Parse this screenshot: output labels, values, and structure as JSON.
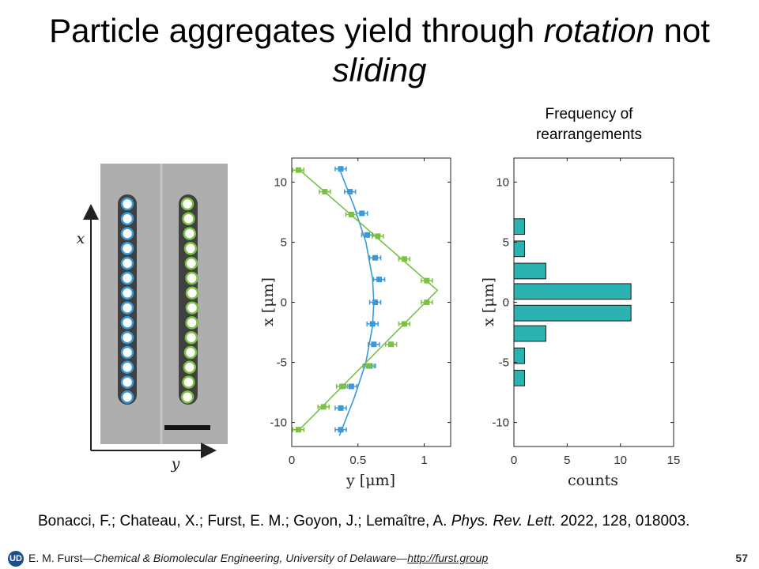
{
  "slide": {
    "title_pre": "Particle aggregates yield through ",
    "title_em1": "rotation",
    "title_mid": " not",
    "title_em2": "sliding",
    "frequency_title_line1": "Frequency of",
    "frequency_title_line2": "rearrangements",
    "micrograph": {
      "x_axis_label": "x",
      "y_axis_label": "y"
    },
    "citation_authors": "Bonacci, F.; Chateau, X.; Furst, E. M.; Goyon, J.; Lemaître, A.  ",
    "citation_journal": "Phys. Rev. Lett.",
    "citation_rest": " 2022, 128, 018003.",
    "footer_author": "E. M. Furst—",
    "footer_dept": "Chemical & Biomolecular Engineering, University of Delaware—",
    "footer_url": "http://furst.group",
    "page_number": "57",
    "logo_text": "UD"
  },
  "colors": {
    "blue": "#3a9ad9",
    "green": "#7ac143",
    "teal": "#2ab3b0"
  },
  "chart_data": [
    {
      "type": "scatter",
      "title": "",
      "xlabel": "y [μm]",
      "ylabel": "x [μm]",
      "xlim": [
        0,
        1.2
      ],
      "ylim": [
        -12,
        12
      ],
      "xticks": [
        "0",
        "0.5",
        "1"
      ],
      "yticks": [
        "10",
        "5",
        "0",
        "-5",
        "-10"
      ],
      "series": [
        {
          "color": "#3a9ad9",
          "x": [
            0.37,
            0.44,
            0.53,
            0.57,
            0.63,
            0.66,
            0.63,
            0.61,
            0.62,
            0.59,
            0.45,
            0.37,
            0.37
          ],
          "y": [
            11.1,
            9.2,
            7.4,
            5.6,
            3.7,
            1.9,
            0.0,
            -1.8,
            -3.5,
            -5.3,
            -7.0,
            -8.8,
            -10.6
          ]
        },
        {
          "color": "#7ac143",
          "x": [
            0.05,
            0.25,
            0.45,
            0.65,
            0.85,
            1.02,
            1.02,
            0.85,
            0.75,
            0.58,
            0.38,
            0.24,
            0.05
          ],
          "y": [
            11.0,
            9.2,
            7.3,
            5.5,
            3.6,
            1.8,
            0.0,
            -1.8,
            -3.5,
            -5.3,
            -7.0,
            -8.7,
            -10.6
          ]
        }
      ],
      "fits": [
        {
          "color": "#3a9ad9",
          "x": [
            0.36,
            0.47,
            0.56,
            0.61,
            0.62,
            0.61,
            0.56,
            0.47,
            0.36
          ],
          "y": [
            11.1,
            8.0,
            5.0,
            2.0,
            0.0,
            -2.0,
            -5.0,
            -8.0,
            -11.1
          ]
        },
        {
          "color": "#7ac143",
          "x": [
            0.04,
            1.1,
            0.04
          ],
          "y": [
            11.2,
            1.0,
            -10.8
          ]
        }
      ]
    },
    {
      "type": "bar",
      "orientation": "horizontal",
      "title": "Frequency of rearrangements",
      "xlabel": "counts",
      "ylabel": "x [μm]",
      "xlim": [
        0,
        15
      ],
      "ylim": [
        -12,
        12
      ],
      "xticks": [
        "0",
        "5",
        "10",
        "15"
      ],
      "yticks": [
        "10",
        "5",
        "0",
        "-5",
        "-10"
      ],
      "bars": [
        {
          "center": 6.3,
          "value": 1
        },
        {
          "center": 4.45,
          "value": 1
        },
        {
          "center": 2.6,
          "value": 3
        },
        {
          "center": 0.9,
          "value": 11
        },
        {
          "center": -0.9,
          "value": 11
        },
        {
          "center": -2.6,
          "value": 3
        },
        {
          "center": -4.45,
          "value": 1
        },
        {
          "center": -6.3,
          "value": 1
        }
      ],
      "bar_height": 1.3
    }
  ]
}
